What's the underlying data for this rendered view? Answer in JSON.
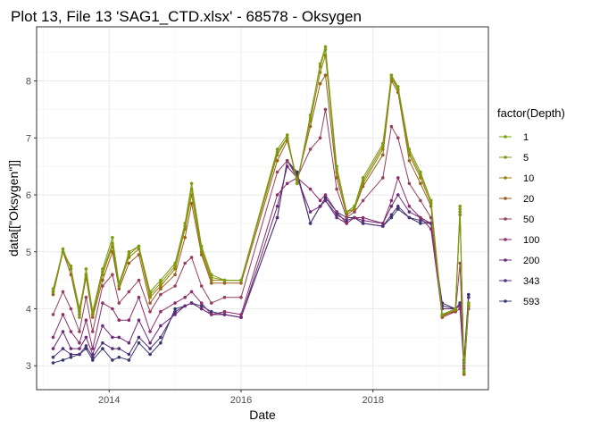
{
  "chart_data": {
    "type": "line",
    "title": "Plot 13, File 13 'SAG1_CTD.xlsx' - 68578  -  Oksygen",
    "xlabel": "Date",
    "ylabel": "data[[\"Oksygen\"]]",
    "x_ticks": [
      "2014",
      "2016",
      "2018"
    ],
    "y_ticks": [
      "3",
      "4",
      "5",
      "6",
      "7",
      "8"
    ],
    "xlim": [
      2012.9,
      2019.75
    ],
    "ylim": [
      2.58,
      8.95
    ],
    "grid": true,
    "legend_title": "factor(Depth)",
    "legend_position": "right",
    "x": [
      2013.15,
      2013.3,
      2013.42,
      2013.55,
      2013.65,
      2013.75,
      2013.9,
      2014.05,
      2014.15,
      2014.3,
      2014.45,
      2014.62,
      2014.78,
      2015.0,
      2015.15,
      2015.25,
      2015.4,
      2015.55,
      2015.75,
      2016.0,
      2016.55,
      2016.7,
      2016.85,
      2017.05,
      2017.2,
      2017.28,
      2017.45,
      2017.6,
      2017.72,
      2017.85,
      2018.15,
      2018.28,
      2018.38,
      2018.55,
      2018.72,
      2018.88,
      2019.05,
      2019.25,
      2019.32,
      2019.38,
      2019.45
    ],
    "series": [
      {
        "name": "1",
        "color": "#76a00f",
        "values": [
          4.35,
          5.0,
          4.75,
          3.85,
          4.7,
          3.95,
          4.7,
          5.25,
          4.45,
          4.95,
          5.1,
          4.3,
          4.5,
          4.8,
          5.5,
          6.2,
          5.1,
          4.6,
          4.5,
          4.5,
          6.8,
          7.05,
          6.2,
          7.35,
          8.3,
          8.6,
          6.5,
          5.7,
          5.8,
          6.3,
          6.9,
          8.1,
          7.9,
          6.8,
          6.4,
          5.9,
          3.9,
          4.0,
          5.8,
          2.9,
          4.1
        ]
      },
      {
        "name": "5",
        "color": "#8b9110",
        "values": [
          4.3,
          5.05,
          4.7,
          4.0,
          4.6,
          3.95,
          4.65,
          5.15,
          4.4,
          5.0,
          5.1,
          4.25,
          4.45,
          4.75,
          5.45,
          6.1,
          5.05,
          4.55,
          4.5,
          4.5,
          6.75,
          7.0,
          6.2,
          7.4,
          8.25,
          8.55,
          6.45,
          5.7,
          5.8,
          6.25,
          6.85,
          8.1,
          7.85,
          6.75,
          6.35,
          5.9,
          3.9,
          4.0,
          5.75,
          2.9,
          4.1
        ]
      },
      {
        "name": "10",
        "color": "#957f0b",
        "values": [
          4.3,
          5.0,
          4.7,
          3.95,
          4.6,
          3.9,
          4.6,
          5.1,
          4.4,
          4.9,
          5.05,
          4.2,
          4.4,
          4.7,
          5.4,
          6.0,
          5.0,
          4.5,
          4.5,
          4.5,
          6.7,
          7.0,
          6.25,
          7.3,
          8.15,
          8.45,
          6.4,
          5.7,
          5.75,
          6.2,
          6.8,
          8.05,
          7.85,
          6.7,
          6.3,
          5.85,
          3.88,
          3.98,
          5.7,
          2.88,
          4.05
        ]
      },
      {
        "name": "20",
        "color": "#9a5e1e",
        "values": [
          4.25,
          5.0,
          4.6,
          3.9,
          4.55,
          3.85,
          4.5,
          5.0,
          4.35,
          4.8,
          4.95,
          4.1,
          4.35,
          4.6,
          5.25,
          5.85,
          4.95,
          4.45,
          4.45,
          4.45,
          6.6,
          6.95,
          6.25,
          7.2,
          7.95,
          8.1,
          6.3,
          5.65,
          5.75,
          6.15,
          6.7,
          8.0,
          7.8,
          6.6,
          6.2,
          5.8,
          3.87,
          3.97,
          5.65,
          2.85,
          4.05
        ]
      },
      {
        "name": "50",
        "color": "#96405a",
        "values": [
          3.9,
          4.3,
          4.0,
          3.6,
          4.2,
          3.6,
          4.4,
          4.6,
          4.1,
          4.3,
          4.5,
          3.95,
          4.25,
          4.4,
          4.8,
          4.9,
          4.4,
          4.1,
          4.2,
          4.2,
          6.4,
          6.6,
          6.3,
          6.8,
          7.0,
          7.5,
          6.1,
          5.6,
          5.7,
          5.9,
          6.3,
          7.2,
          7.0,
          6.2,
          5.9,
          5.6,
          3.85,
          3.95,
          4.8,
          2.85,
          4.0
        ]
      },
      {
        "name": "100",
        "color": "#8a2e6d",
        "values": [
          3.5,
          3.9,
          3.6,
          3.4,
          3.8,
          3.3,
          4.1,
          4.0,
          3.8,
          3.8,
          4.2,
          3.6,
          3.95,
          4.1,
          4.2,
          4.3,
          4.1,
          3.9,
          3.95,
          3.9,
          6.0,
          6.2,
          6.3,
          6.1,
          5.9,
          6.0,
          5.7,
          5.5,
          5.6,
          5.6,
          5.5,
          5.9,
          6.3,
          5.8,
          5.6,
          5.4,
          3.9,
          3.95,
          4.0,
          2.95,
          4.05
        ]
      },
      {
        "name": "200",
        "color": "#6e2a7a",
        "values": [
          3.3,
          3.6,
          3.3,
          3.3,
          3.5,
          3.2,
          3.7,
          3.5,
          3.5,
          3.4,
          3.8,
          3.4,
          3.7,
          3.9,
          4.05,
          4.1,
          4.0,
          3.9,
          3.9,
          3.85,
          5.8,
          6.5,
          6.3,
          5.7,
          5.8,
          5.9,
          5.6,
          5.5,
          5.6,
          5.55,
          5.5,
          5.8,
          6.0,
          5.7,
          5.6,
          5.5,
          4.0,
          4.0,
          4.05,
          3.0,
          4.1
        ]
      },
      {
        "name": "343",
        "color": "#4f3079",
        "values": [
          3.15,
          3.3,
          3.2,
          3.2,
          3.35,
          3.15,
          3.4,
          3.3,
          3.3,
          3.2,
          3.5,
          3.3,
          3.5,
          3.95,
          4.05,
          4.1,
          4.0,
          3.9,
          3.9,
          3.85,
          5.6,
          6.6,
          6.35,
          5.5,
          5.8,
          5.9,
          5.65,
          5.55,
          5.6,
          5.5,
          5.45,
          5.65,
          5.8,
          5.6,
          5.55,
          5.5,
          4.05,
          4.0,
          4.1,
          3.05,
          4.2
        ]
      },
      {
        "name": "593",
        "color": "#35376e",
        "values": [
          3.05,
          3.1,
          3.15,
          3.2,
          3.3,
          3.1,
          3.3,
          3.1,
          3.15,
          3.1,
          3.4,
          3.2,
          3.4,
          4.0,
          4.05,
          4.1,
          4.05,
          3.95,
          3.9,
          3.85,
          5.6,
          6.6,
          6.4,
          5.5,
          5.8,
          5.95,
          5.7,
          5.6,
          5.6,
          5.5,
          5.45,
          5.6,
          5.75,
          5.6,
          5.5,
          5.5,
          4.1,
          4.0,
          4.1,
          3.1,
          4.25
        ]
      }
    ]
  }
}
